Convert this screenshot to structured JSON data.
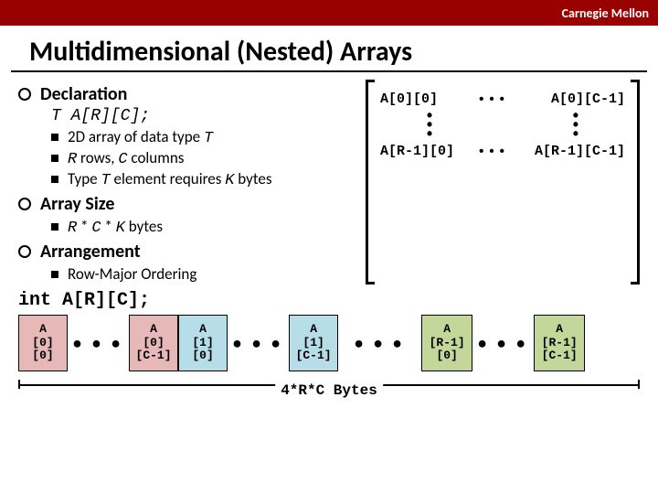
{
  "header": {
    "brand": "Carnegie Mellon"
  },
  "title": "Multidimensional (Nested) Arrays",
  "sections": {
    "declaration": {
      "label": "Declaration",
      "code": "T A[R][C];",
      "items": [
        "2D array of data type T",
        "R rows, C columns",
        "Type T element requires K bytes"
      ]
    },
    "array_size": {
      "label": "Array Size",
      "items": [
        "R * C * K bytes"
      ]
    },
    "arrangement": {
      "label": "Arrangement",
      "items": [
        "Row-Major Ordering"
      ]
    }
  },
  "matrix": {
    "tl": "A[0][0]",
    "tr": "A[0][C-1]",
    "bl": "A[R-1][0]",
    "br": "A[R-1][C-1]"
  },
  "code_line": "int A[R][C];",
  "memory": {
    "cells": [
      {
        "color": "pink",
        "lines": [
          "A",
          "[0]",
          "[0]"
        ]
      },
      {
        "gap": true
      },
      {
        "color": "pink",
        "lines": [
          "A",
          "[0]",
          "[C-1]"
        ]
      },
      {
        "color": "blue",
        "lines": [
          "A",
          "[1]",
          "[0]"
        ]
      },
      {
        "gap": true
      },
      {
        "color": "blue",
        "lines": [
          "A",
          "[1]",
          "[C-1]"
        ]
      },
      {
        "gap": true,
        "wide": true
      },
      {
        "color": "green",
        "lines": [
          "A",
          "[R-1]",
          "[0]"
        ]
      },
      {
        "gap": true
      },
      {
        "color": "green",
        "lines": [
          "A",
          "[R-1]",
          "[C-1]"
        ]
      }
    ],
    "total_label": "4*R*C  Bytes"
  },
  "colors": {
    "header_bg": "#990000",
    "pink": "#e6b9b8",
    "blue": "#b7dde8",
    "green": "#c3d79b"
  }
}
